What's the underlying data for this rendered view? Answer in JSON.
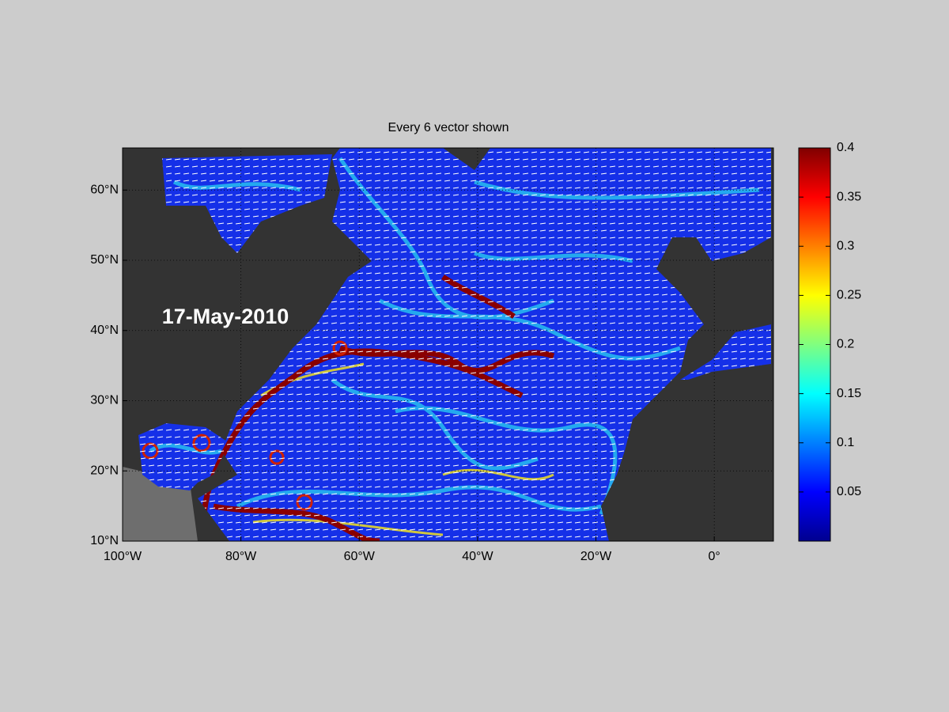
{
  "chart_data": {
    "type": "map",
    "title": "Every 6 vector shown",
    "annotations": [
      "17-May-2010"
    ],
    "xlim": [
      -100,
      10
    ],
    "xticks": [
      {
        "value": -100,
        "label": "100°W"
      },
      {
        "value": -80,
        "label": "80°W"
      },
      {
        "value": -60,
        "label": "60°W"
      },
      {
        "value": -40,
        "label": "40°W"
      },
      {
        "value": -20,
        "label": "20°W"
      },
      {
        "value": 0,
        "label": "0°"
      }
    ],
    "ylim": [
      10,
      66
    ],
    "yticks": [
      {
        "value": 10,
        "label": "10°N"
      },
      {
        "value": 20,
        "label": "20°N"
      },
      {
        "value": 30,
        "label": "30°N"
      },
      {
        "value": 40,
        "label": "40°N"
      },
      {
        "value": 50,
        "label": "50°N"
      },
      {
        "value": 60,
        "label": "60°N"
      }
    ],
    "grid": true,
    "colorbar": {
      "colormap": "jet",
      "clim": [
        0,
        0.4
      ],
      "ticks": [
        0.05,
        0.1,
        0.15,
        0.2,
        0.25,
        0.3,
        0.35,
        0.4
      ]
    }
  }
}
